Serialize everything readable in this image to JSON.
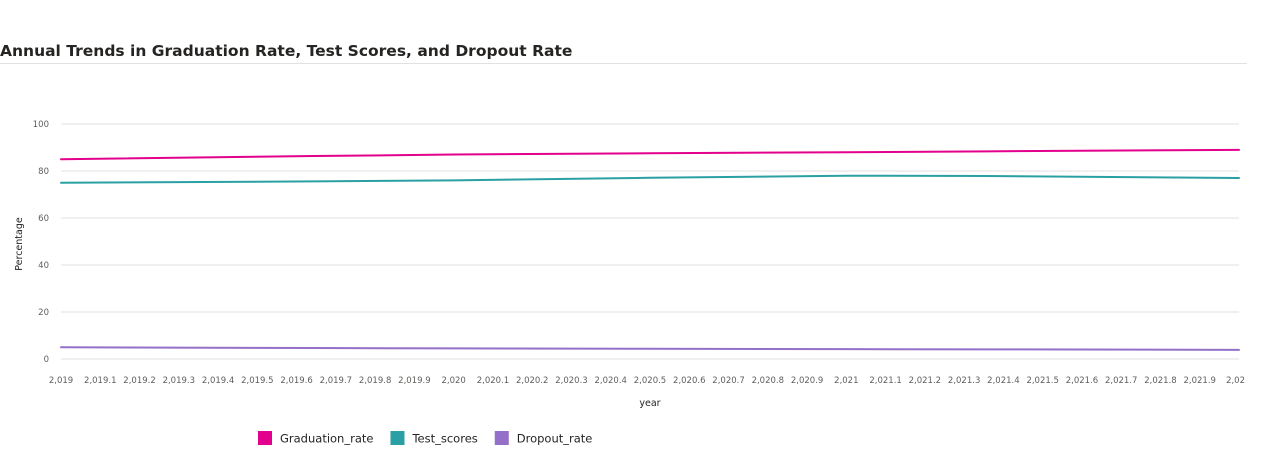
{
  "chart_data": {
    "type": "line",
    "title": "Annual Trends in Graduation Rate, Test Scores, and Dropout Rate",
    "xlabel": "year",
    "ylabel": "Percentage",
    "xlim": [
      2019,
      2022
    ],
    "ylim": [
      0,
      100
    ],
    "yticks": [
      0,
      20,
      40,
      60,
      80,
      100
    ],
    "xticks": [
      "2,019",
      "2,019.1",
      "2,019.2",
      "2,019.3",
      "2,019.4",
      "2,019.5",
      "2,019.6",
      "2,019.7",
      "2,019.8",
      "2,019.9",
      "2,020",
      "2,020.1",
      "2,020.2",
      "2,020.3",
      "2,020.4",
      "2,020.5",
      "2,020.6",
      "2,020.7",
      "2,020.8",
      "2,020.9",
      "2,021",
      "2,021.1",
      "2,021.2",
      "2,021.3",
      "2,021.4",
      "2,021.5",
      "2,021.6",
      "2,021.7",
      "2,021.8",
      "2,021.9",
      "2,02"
    ],
    "grid": true,
    "legend_position": "bottom-left",
    "x": [
      2019,
      2020,
      2021,
      2022
    ],
    "series": [
      {
        "name": "Graduation_rate",
        "color": "#e3008c",
        "values": [
          85,
          87,
          88,
          89
        ]
      },
      {
        "name": "Test_scores",
        "color": "#2aa0a4",
        "values": [
          75,
          76,
          78,
          77
        ]
      },
      {
        "name": "Dropout_rate",
        "color": "#9470c8",
        "values": [
          5,
          4.5,
          4.2,
          3.9
        ]
      }
    ]
  }
}
